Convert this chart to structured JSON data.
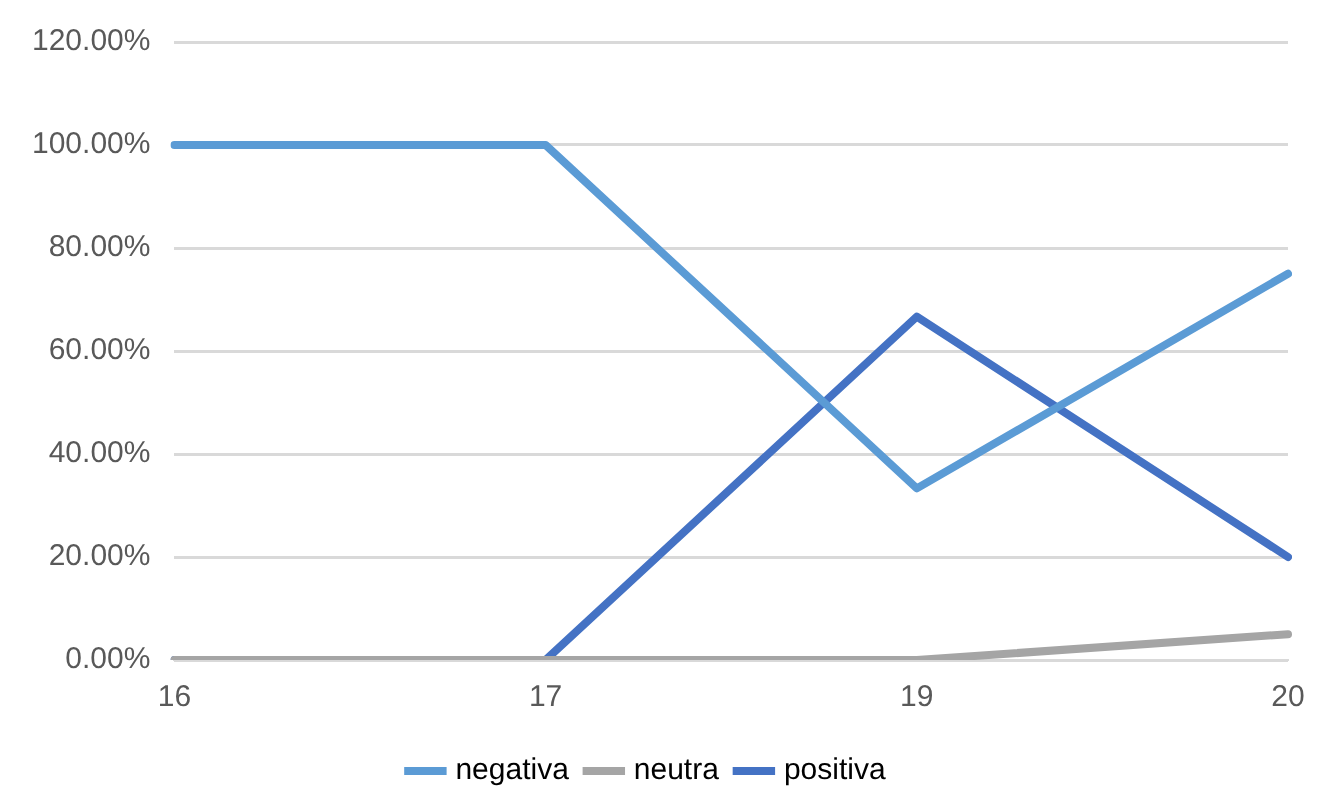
{
  "chart_data": {
    "type": "line",
    "categories": [
      "16",
      "17",
      "19",
      "20"
    ],
    "series": [
      {
        "name": "negativa",
        "color": "#5b9bd5",
        "values": [
          100,
          100,
          33.33,
          75
        ]
      },
      {
        "name": "neutra",
        "color": "#a5a5a5",
        "values": [
          0,
          0,
          0,
          5
        ]
      },
      {
        "name": "positiva",
        "color": "#4472c4",
        "values": [
          0,
          0,
          66.67,
          20
        ]
      }
    ],
    "ylim": [
      0,
      120
    ],
    "yticks": [
      {
        "value": 0,
        "label": "0.00%"
      },
      {
        "value": 20,
        "label": "20.00%"
      },
      {
        "value": 40,
        "label": "40.00%"
      },
      {
        "value": 60,
        "label": "60.00%"
      },
      {
        "value": 80,
        "label": "80.00%"
      },
      {
        "value": 100,
        "label": "100.00%"
      },
      {
        "value": 120,
        "label": "120.00%"
      }
    ],
    "grid": "y",
    "legend": "bottom",
    "marker": "none",
    "line_style": "solid"
  }
}
